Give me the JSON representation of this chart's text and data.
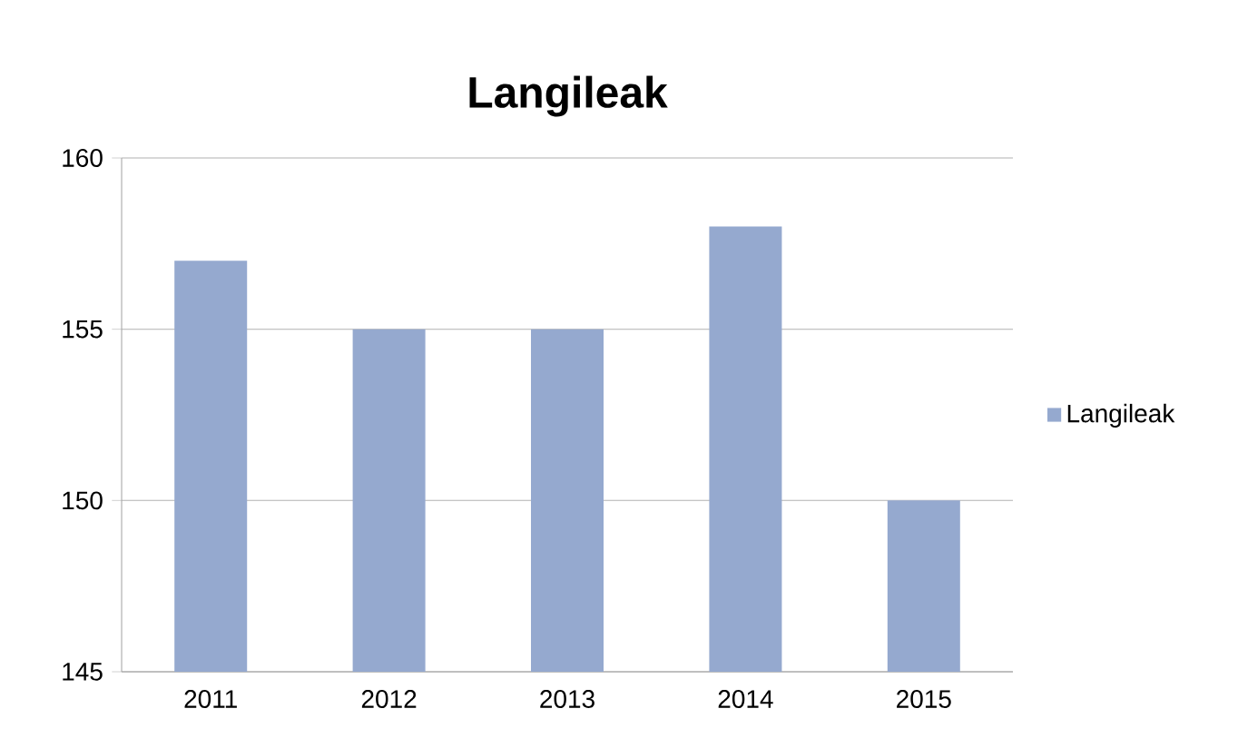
{
  "chart_data": {
    "type": "bar",
    "title": "Langileak",
    "categories": [
      "2011",
      "2012",
      "2013",
      "2014",
      "2015"
    ],
    "series": [
      {
        "name": "Langileak",
        "color": "#95a9cf",
        "values": [
          157,
          155,
          155,
          158,
          150
        ]
      }
    ],
    "ylim": [
      145,
      160
    ],
    "yticks": [
      145,
      150,
      155,
      160
    ],
    "grid": "y",
    "legend": "right"
  }
}
